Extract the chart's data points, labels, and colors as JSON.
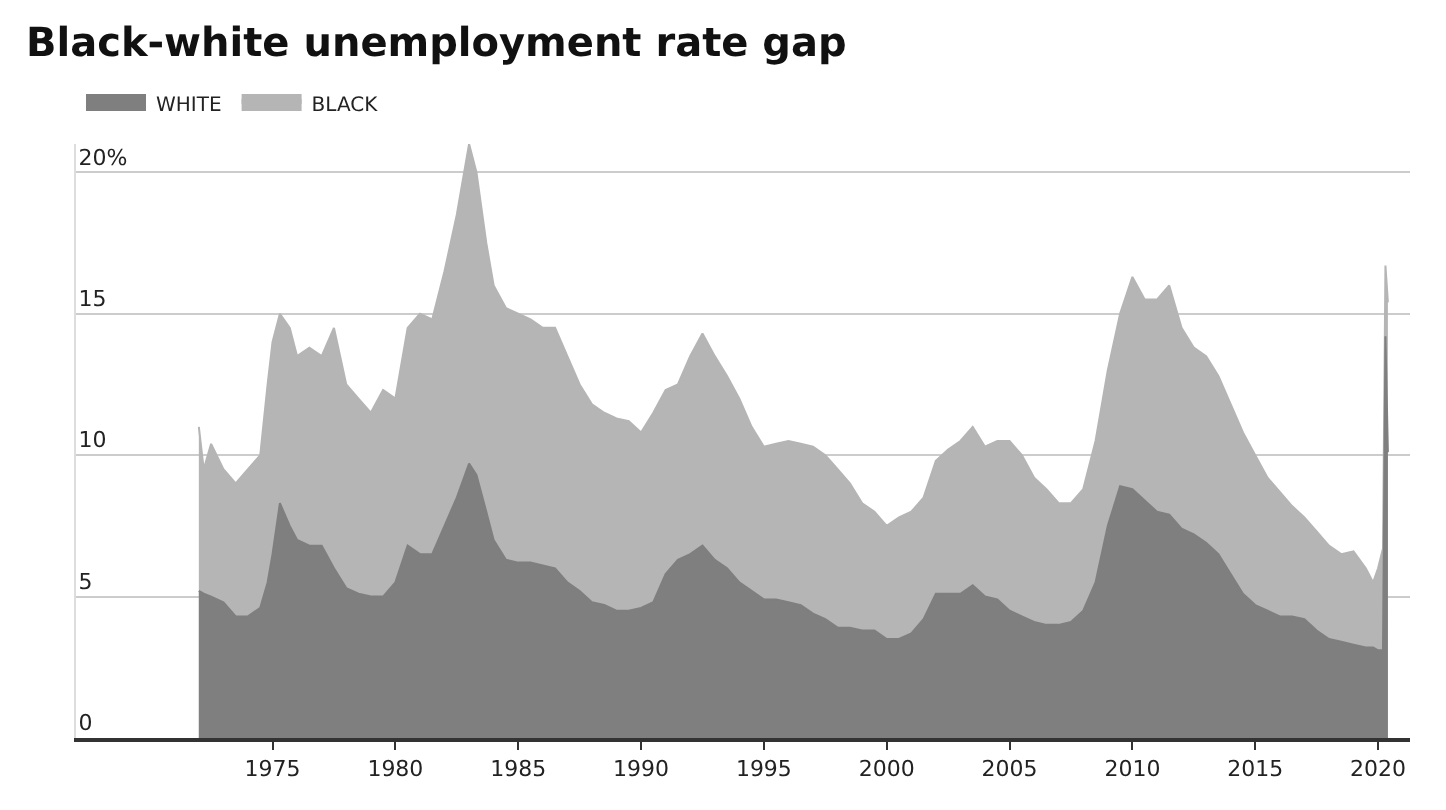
{
  "chart_data": {
    "type": "area",
    "title": "Black-white unemployment rate gap",
    "legend": "top left",
    "grid": "y",
    "xlim": [
      1967,
      2021.3
    ],
    "xticks": [
      1975,
      1980,
      1985,
      1990,
      1995,
      2000,
      2005,
      2010,
      2015,
      2020
    ],
    "ylim": [
      0,
      21
    ],
    "yticks": [
      0,
      5,
      10,
      15,
      {
        "value": 20,
        "label": "20%"
      }
    ],
    "x": [
      1972.0,
      1972.2,
      1972.5,
      1973.0,
      1973.5,
      1974.0,
      1974.5,
      1974.8,
      1975.0,
      1975.3,
      1975.7,
      1976.0,
      1976.5,
      1977.0,
      1977.5,
      1978.0,
      1978.5,
      1979.0,
      1979.5,
      1980.0,
      1980.5,
      1981.0,
      1981.5,
      1982.0,
      1982.5,
      1983.0,
      1983.3,
      1983.7,
      1984.0,
      1984.5,
      1985.0,
      1985.5,
      1986.0,
      1986.5,
      1987.0,
      1987.5,
      1988.0,
      1988.5,
      1989.0,
      1989.5,
      1990.0,
      1990.5,
      1991.0,
      1991.5,
      1992.0,
      1992.5,
      1993.0,
      1993.5,
      1994.0,
      1994.5,
      1995.0,
      1995.5,
      1996.0,
      1996.5,
      1997.0,
      1997.5,
      1998.0,
      1998.5,
      1999.0,
      1999.5,
      2000.0,
      2000.5,
      2001.0,
      2001.5,
      2002.0,
      2002.5,
      2003.0,
      2003.5,
      2004.0,
      2004.5,
      2005.0,
      2005.5,
      2006.0,
      2006.5,
      2007.0,
      2007.5,
      2008.0,
      2008.5,
      2009.0,
      2009.5,
      2010.0,
      2010.5,
      2011.0,
      2011.5,
      2012.0,
      2012.5,
      2013.0,
      2013.5,
      2014.0,
      2014.5,
      2015.0,
      2015.5,
      2016.0,
      2016.5,
      2017.0,
      2017.5,
      2018.0,
      2018.5,
      2019.0,
      2019.5,
      2019.8,
      2020.0,
      2020.2,
      2020.3,
      2020.4
    ],
    "series": [
      {
        "name": "BLACK",
        "color": "#b5b5b5",
        "values": [
          11.0,
          9.5,
          10.4,
          9.5,
          9.0,
          9.5,
          10.0,
          12.5,
          14.0,
          15.0,
          14.5,
          13.5,
          13.8,
          13.5,
          14.5,
          12.5,
          12.0,
          11.5,
          12.3,
          12.0,
          14.5,
          15.0,
          14.8,
          16.5,
          18.5,
          21.0,
          20.0,
          17.5,
          16.0,
          15.2,
          15.0,
          14.8,
          14.5,
          14.5,
          13.5,
          12.5,
          11.8,
          11.5,
          11.3,
          11.2,
          10.8,
          11.5,
          12.3,
          12.5,
          13.5,
          14.3,
          13.5,
          12.8,
          12.0,
          11.0,
          10.3,
          10.4,
          10.5,
          10.4,
          10.3,
          10.0,
          9.5,
          9.0,
          8.3,
          8.0,
          7.5,
          7.8,
          8.0,
          8.5,
          9.8,
          10.2,
          10.5,
          11.0,
          10.3,
          10.5,
          10.5,
          10.0,
          9.2,
          8.8,
          8.3,
          8.3,
          8.8,
          10.5,
          13.0,
          15.0,
          16.3,
          15.5,
          15.5,
          16.0,
          14.5,
          13.8,
          13.5,
          12.8,
          11.8,
          10.8,
          10.0,
          9.2,
          8.7,
          8.2,
          7.8,
          7.3,
          6.8,
          6.5,
          6.6,
          6.0,
          5.5,
          6.0,
          6.7,
          16.7,
          15.4
        ]
      },
      {
        "name": "WHITE",
        "color": "#7f7f7f",
        "values": [
          5.2,
          5.1,
          5.0,
          4.8,
          4.3,
          4.3,
          4.6,
          5.5,
          6.5,
          8.3,
          7.5,
          7.0,
          6.8,
          6.8,
          6.0,
          5.3,
          5.1,
          5.0,
          5.0,
          5.5,
          6.8,
          6.5,
          6.5,
          7.5,
          8.5,
          9.7,
          9.3,
          8.0,
          7.0,
          6.3,
          6.2,
          6.2,
          6.1,
          6.0,
          5.5,
          5.2,
          4.8,
          4.7,
          4.5,
          4.5,
          4.6,
          4.8,
          5.8,
          6.3,
          6.5,
          6.8,
          6.3,
          6.0,
          5.5,
          5.2,
          4.9,
          4.9,
          4.8,
          4.7,
          4.4,
          4.2,
          3.9,
          3.9,
          3.8,
          3.8,
          3.5,
          3.5,
          3.7,
          4.2,
          5.1,
          5.1,
          5.1,
          5.4,
          5.0,
          4.9,
          4.5,
          4.3,
          4.1,
          4.0,
          4.0,
          4.1,
          4.5,
          5.5,
          7.5,
          8.9,
          8.8,
          8.4,
          8.0,
          7.9,
          7.4,
          7.2,
          6.9,
          6.5,
          5.8,
          5.1,
          4.7,
          4.5,
          4.3,
          4.3,
          4.2,
          3.8,
          3.5,
          3.4,
          3.3,
          3.2,
          3.2,
          3.1,
          3.1,
          14.2,
          10.1
        ]
      }
    ]
  }
}
